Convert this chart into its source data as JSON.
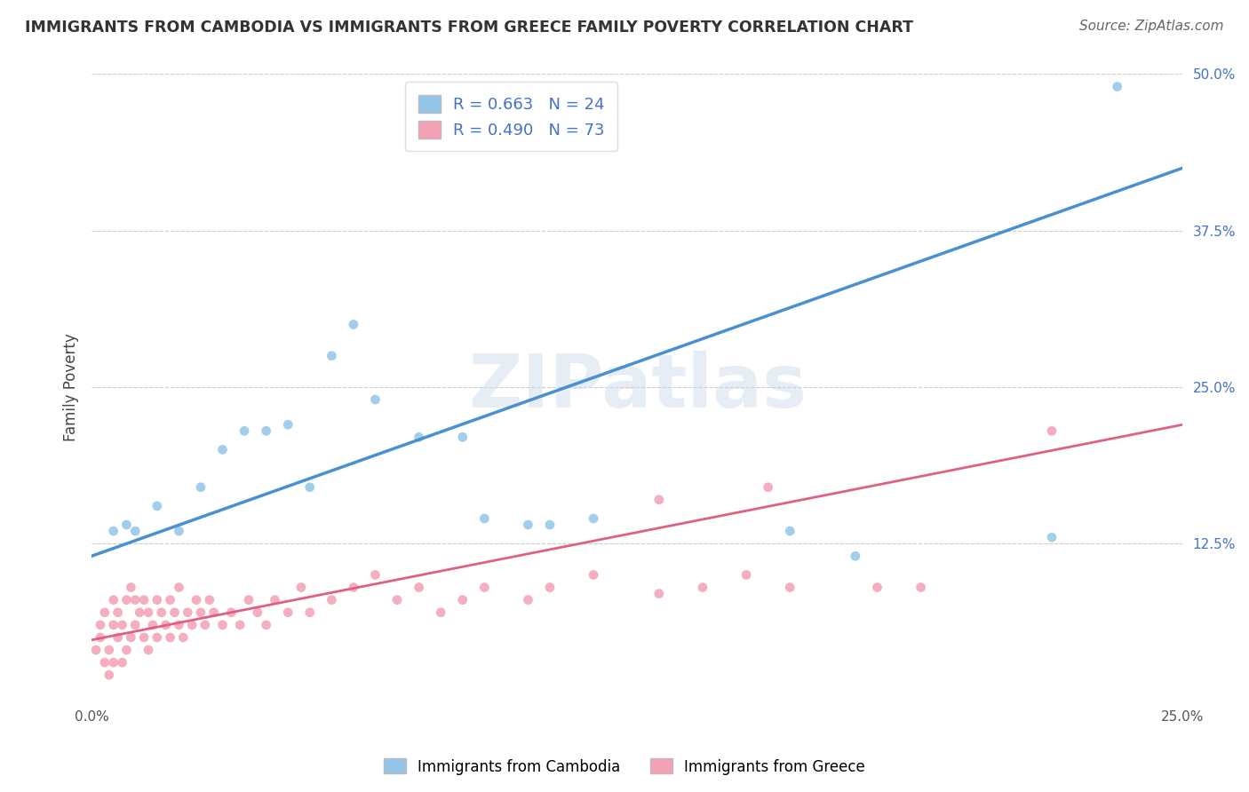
{
  "title": "IMMIGRANTS FROM CAMBODIA VS IMMIGRANTS FROM GREECE FAMILY POVERTY CORRELATION CHART",
  "source": "Source: ZipAtlas.com",
  "ylabel": "Family Poverty",
  "xlim": [
    0.0,
    0.25
  ],
  "ylim": [
    0.0,
    0.5
  ],
  "xticks": [
    0.0,
    0.05,
    0.1,
    0.15,
    0.2,
    0.25
  ],
  "yticks": [
    0.0,
    0.125,
    0.25,
    0.375,
    0.5
  ],
  "r_cambodia": 0.663,
  "n_cambodia": 24,
  "r_greece": 0.49,
  "n_greece": 73,
  "color_cambodia": "#92C5E8",
  "color_greece": "#F4A0B5",
  "trend_color_cambodia": "#4A90D0",
  "trend_color_greece": "#E06080",
  "legend_label_cambodia": "Immigrants from Cambodia",
  "legend_label_greece": "Immigrants from Greece",
  "watermark": "ZIPatlas",
  "cambodia_x": [
    0.005,
    0.008,
    0.01,
    0.015,
    0.02,
    0.025,
    0.03,
    0.035,
    0.04,
    0.045,
    0.05,
    0.055,
    0.06,
    0.065,
    0.075,
    0.085,
    0.09,
    0.1,
    0.105,
    0.115,
    0.16,
    0.175,
    0.22,
    0.235
  ],
  "cambodia_y": [
    0.135,
    0.14,
    0.135,
    0.155,
    0.135,
    0.17,
    0.2,
    0.215,
    0.215,
    0.22,
    0.17,
    0.275,
    0.3,
    0.24,
    0.21,
    0.21,
    0.145,
    0.14,
    0.14,
    0.145,
    0.135,
    0.115,
    0.13,
    0.49
  ],
  "greece_x": [
    0.001,
    0.002,
    0.002,
    0.003,
    0.003,
    0.004,
    0.004,
    0.005,
    0.005,
    0.005,
    0.006,
    0.006,
    0.007,
    0.007,
    0.008,
    0.008,
    0.009,
    0.009,
    0.01,
    0.01,
    0.011,
    0.012,
    0.012,
    0.013,
    0.013,
    0.014,
    0.015,
    0.015,
    0.016,
    0.017,
    0.018,
    0.018,
    0.019,
    0.02,
    0.02,
    0.021,
    0.022,
    0.023,
    0.024,
    0.025,
    0.026,
    0.027,
    0.028,
    0.03,
    0.032,
    0.034,
    0.036,
    0.038,
    0.04,
    0.042,
    0.045,
    0.048,
    0.05,
    0.055,
    0.06,
    0.065,
    0.07,
    0.075,
    0.08,
    0.085,
    0.09,
    0.1,
    0.105,
    0.115,
    0.13,
    0.14,
    0.15,
    0.16,
    0.18,
    0.19,
    0.13,
    0.155,
    0.22
  ],
  "greece_y": [
    0.04,
    0.05,
    0.06,
    0.03,
    0.07,
    0.02,
    0.04,
    0.03,
    0.06,
    0.08,
    0.05,
    0.07,
    0.03,
    0.06,
    0.04,
    0.08,
    0.05,
    0.09,
    0.06,
    0.08,
    0.07,
    0.05,
    0.08,
    0.04,
    0.07,
    0.06,
    0.05,
    0.08,
    0.07,
    0.06,
    0.05,
    0.08,
    0.07,
    0.06,
    0.09,
    0.05,
    0.07,
    0.06,
    0.08,
    0.07,
    0.06,
    0.08,
    0.07,
    0.06,
    0.07,
    0.06,
    0.08,
    0.07,
    0.06,
    0.08,
    0.07,
    0.09,
    0.07,
    0.08,
    0.09,
    0.1,
    0.08,
    0.09,
    0.07,
    0.08,
    0.09,
    0.08,
    0.09,
    0.1,
    0.085,
    0.09,
    0.1,
    0.09,
    0.09,
    0.09,
    0.16,
    0.17,
    0.215
  ],
  "trend_cambodia_x0": 0.0,
  "trend_cambodia_y0": 0.115,
  "trend_cambodia_x1": 0.25,
  "trend_cambodia_y1": 0.425,
  "trend_greece_x0": 0.0,
  "trend_greece_y0": 0.048,
  "trend_greece_x1": 0.25,
  "trend_greece_y1": 0.22
}
